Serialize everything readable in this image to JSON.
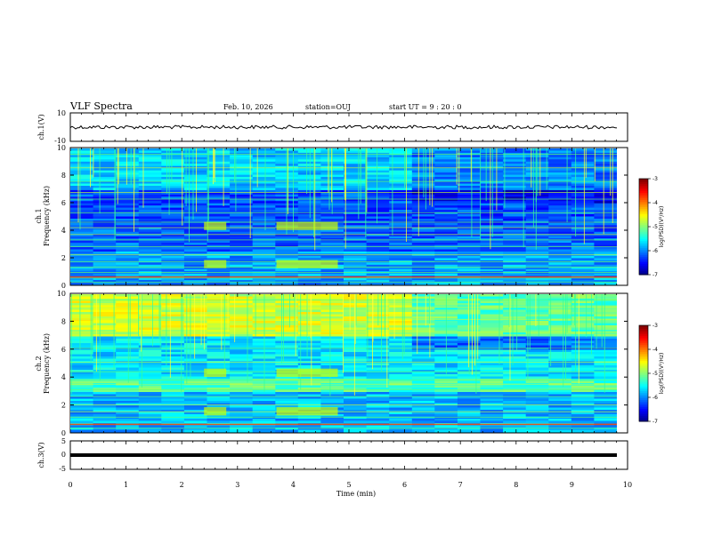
{
  "header": {
    "title": "VLF Spectra",
    "date": "Feb. 10, 2026",
    "station": "station=OUJ",
    "start": "start  UT  =   9  : 20 : 0"
  },
  "chart_data": [
    {
      "type": "line",
      "panel": "ch.1(V)",
      "ylabel": "ch.1(V)",
      "yticks": [
        "10",
        "-10"
      ],
      "ylim": [
        -10,
        10
      ],
      "xlim": [
        0,
        10
      ],
      "description_value": "waveform near 0 V with noise amplitude ~1 V"
    },
    {
      "type": "heatmap",
      "panel": "ch.1 spectrogram",
      "ylabel_top": "ch.1",
      "ylabel": "Frequency  (kHz)",
      "yticks": [
        "0",
        "2",
        "4",
        "6",
        "8",
        "10"
      ],
      "ylim": [
        0,
        10
      ],
      "xlim": [
        0,
        9.85
      ],
      "colorbar": {
        "label": "log(PSD)(V²/Hz)",
        "ticks": [
          "-3",
          "-4",
          "-5",
          "-6",
          "-7"
        ],
        "range": [
          -7,
          -3
        ]
      }
    },
    {
      "type": "heatmap",
      "panel": "ch.2 spectrogram",
      "ylabel_top": "ch.2",
      "ylabel": "Frequency  (kHz)",
      "yticks": [
        "0",
        "2",
        "4",
        "6",
        "8",
        "10"
      ],
      "ylim": [
        0,
        10
      ],
      "xlim": [
        0,
        9.85
      ],
      "colorbar": {
        "label": "log(PSD)(V²/Hz)",
        "ticks": [
          "-3",
          "-4",
          "-5",
          "-6",
          "-7"
        ],
        "range": [
          -7,
          -3
        ]
      }
    },
    {
      "type": "line",
      "panel": "ch.3(V)",
      "ylabel": "ch.3(V)",
      "yticks": [
        "5",
        "0",
        "-5"
      ],
      "ylim": [
        -5,
        5
      ],
      "xlim": [
        0,
        10
      ],
      "values_note": "constant ≈ 0 V"
    }
  ],
  "xaxis": {
    "label": "Time  (min)",
    "ticks": [
      "0",
      "1",
      "2",
      "3",
      "4",
      "5",
      "6",
      "7",
      "8",
      "9",
      "10"
    ]
  },
  "colors": {
    "background_dark": "#00008b",
    "accent_green": "#33ff33",
    "accent_yellow": "#ffff33",
    "accent_red": "#ff2200"
  }
}
